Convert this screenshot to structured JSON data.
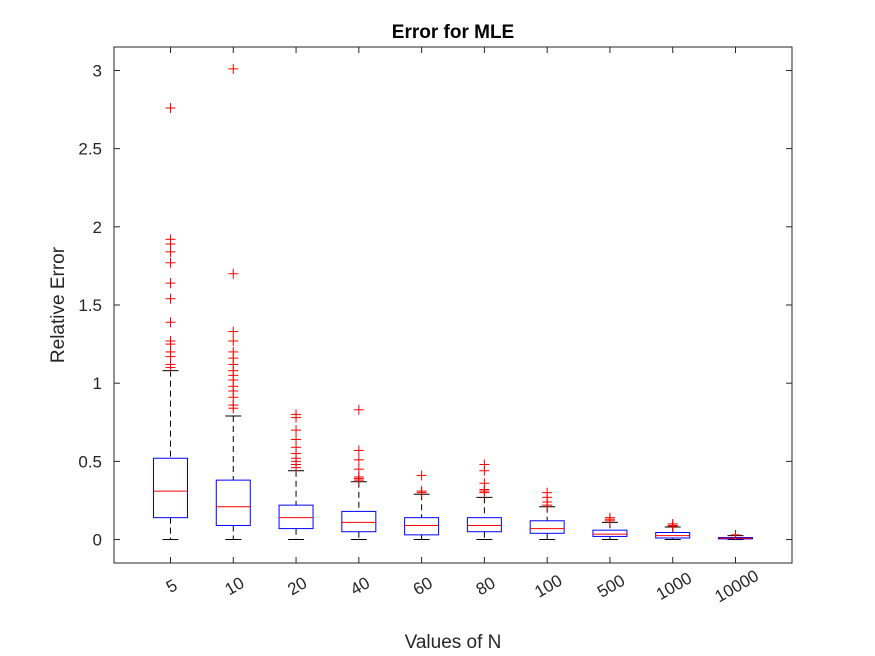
{
  "chart_data": {
    "type": "boxplot",
    "title": "Error for MLE",
    "xlabel": "Values of N",
    "ylabel": "Relative Error",
    "ylim": [
      -0.15,
      3.15
    ],
    "yticks": [
      0,
      0.5,
      1,
      1.5,
      2,
      2.5,
      3
    ],
    "ytick_labels": [
      "0",
      "0.5",
      "1",
      "1.5",
      "2",
      "2.5",
      "3"
    ],
    "categories": [
      "5",
      "10",
      "20",
      "40",
      "60",
      "80",
      "100",
      "500",
      "1000",
      "10000"
    ],
    "grid": false,
    "colors": {
      "box": "#0000ff",
      "median": "#ff0000",
      "whisker": "#000000",
      "outlier": "#ff0000",
      "axis": "#262626"
    },
    "boxes": [
      {
        "category": "5",
        "whisker_low": 0.0,
        "q1": 0.14,
        "median": 0.31,
        "q3": 0.52,
        "whisker_high": 1.08,
        "outliers": [
          1.1,
          1.12,
          1.17,
          1.2,
          1.25,
          1.27,
          1.39,
          1.54,
          1.64,
          1.77,
          1.84,
          1.89,
          1.92,
          2.76
        ]
      },
      {
        "category": "10",
        "whisker_low": 0.0,
        "q1": 0.09,
        "median": 0.21,
        "q3": 0.38,
        "whisker_high": 0.79,
        "outliers": [
          0.84,
          0.86,
          0.91,
          0.95,
          0.98,
          1.02,
          1.05,
          1.08,
          1.12,
          1.16,
          1.2,
          1.27,
          1.33,
          1.7,
          3.01
        ]
      },
      {
        "category": "20",
        "whisker_low": 0.0,
        "q1": 0.07,
        "median": 0.14,
        "q3": 0.22,
        "whisker_high": 0.44,
        "outliers": [
          0.46,
          0.48,
          0.5,
          0.52,
          0.55,
          0.59,
          0.64,
          0.7,
          0.78,
          0.8
        ]
      },
      {
        "category": "40",
        "whisker_low": 0.0,
        "q1": 0.05,
        "median": 0.11,
        "q3": 0.18,
        "whisker_high": 0.37,
        "outliers": [
          0.38,
          0.39,
          0.4,
          0.45,
          0.51,
          0.57,
          0.83
        ]
      },
      {
        "category": "60",
        "whisker_low": 0.0,
        "q1": 0.03,
        "median": 0.09,
        "q3": 0.14,
        "whisker_high": 0.29,
        "outliers": [
          0.3,
          0.31,
          0.41
        ]
      },
      {
        "category": "80",
        "whisker_low": 0.0,
        "q1": 0.05,
        "median": 0.09,
        "q3": 0.14,
        "whisker_high": 0.27,
        "outliers": [
          0.3,
          0.31,
          0.32,
          0.36,
          0.44,
          0.48
        ]
      },
      {
        "category": "100",
        "whisker_low": 0.0,
        "q1": 0.04,
        "median": 0.07,
        "q3": 0.12,
        "whisker_high": 0.21,
        "outliers": [
          0.22,
          0.24,
          0.27,
          0.3
        ]
      },
      {
        "category": "500",
        "whisker_low": 0.0,
        "q1": 0.02,
        "median": 0.035,
        "q3": 0.06,
        "whisker_high": 0.11,
        "outliers": [
          0.12,
          0.13,
          0.14
        ]
      },
      {
        "category": "1000",
        "whisker_low": 0.0,
        "q1": 0.01,
        "median": 0.025,
        "q3": 0.045,
        "whisker_high": 0.08,
        "outliers": [
          0.085,
          0.09,
          0.1
        ]
      },
      {
        "category": "10000",
        "whisker_low": 0.0,
        "q1": 0.004,
        "median": 0.008,
        "q3": 0.013,
        "whisker_high": 0.025,
        "outliers": [
          0.03
        ]
      }
    ]
  }
}
